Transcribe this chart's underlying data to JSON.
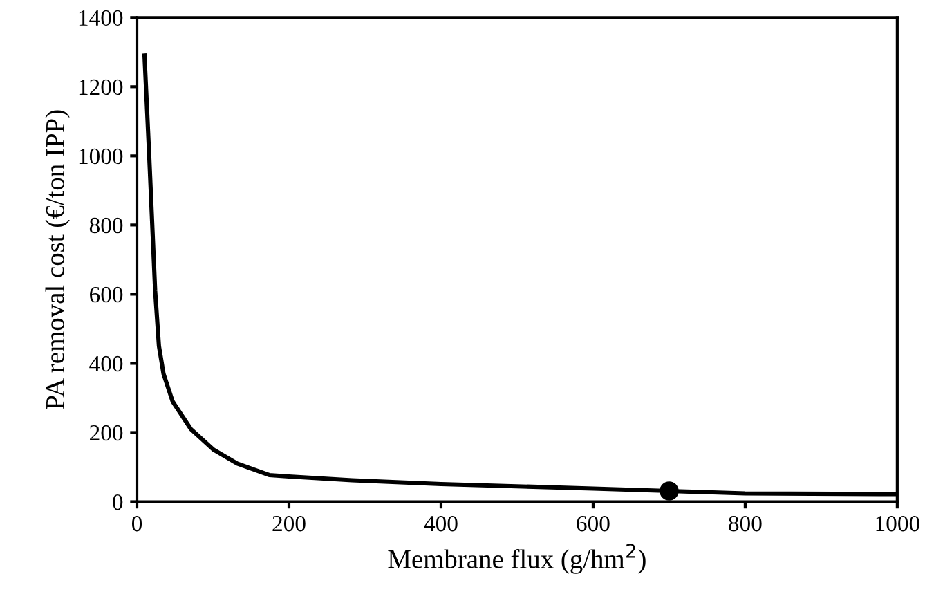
{
  "chart_data": {
    "type": "line",
    "xlabel": "Membrane flux (g/hm$^{2}$)",
    "ylabel": "PA removal cost (€/ton IPP)",
    "xlim": [
      0,
      1000
    ],
    "ylim": [
      0,
      1400
    ],
    "xticks": [
      0,
      200,
      400,
      600,
      800,
      1000
    ],
    "yticks": [
      0,
      200,
      400,
      600,
      800,
      1000,
      1200,
      1400
    ],
    "grid": false,
    "legend": false,
    "series": [
      {
        "color": "#000000",
        "marker": "none",
        "line_style": "solid",
        "x": [
          10,
          16,
          24,
          29,
          35,
          47,
          71,
          101,
          132,
          174,
          200,
          283,
          400,
          600,
          700,
          800,
          1000
        ],
        "values": [
          1290,
          1010,
          610,
          450,
          370,
          290,
          210,
          150,
          110,
          77,
          73,
          62,
          51,
          38,
          31,
          24,
          22
        ]
      },
      {
        "type": "scatter",
        "color": "#000000",
        "marker": "circle",
        "x": [
          700
        ],
        "values": [
          31
        ]
      }
    ]
  }
}
